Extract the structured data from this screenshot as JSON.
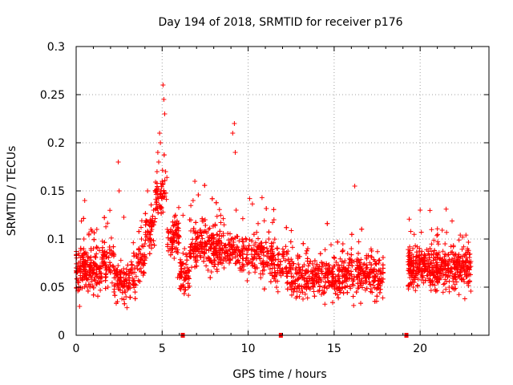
{
  "chart_data": {
    "type": "scatter",
    "title": "Day 194 of 2018, SRMTID for receiver p176",
    "xlabel": "GPS time / hours",
    "ylabel": "SRMTID / TECUs",
    "xlim": [
      0,
      24
    ],
    "ylim": [
      0,
      0.3
    ],
    "x_ticks": [
      0,
      5,
      10,
      15,
      20
    ],
    "x_tick_labels": [
      "0",
      "5",
      "10",
      "15",
      "20"
    ],
    "y_ticks": [
      0,
      0.05,
      0.1,
      0.15,
      0.2,
      0.25,
      0.3
    ],
    "y_tick_labels": [
      "0",
      "0.05",
      "0.1",
      "0.15",
      "0.2",
      "0.25",
      "0.3"
    ],
    "grid": true,
    "marker": "+",
    "color": "#ff0000",
    "gap_markers_x": [
      6.2,
      11.9,
      19.2
    ],
    "sampled_points": {
      "x": [
        0.0,
        0.1,
        0.15,
        0.2,
        0.25,
        0.35,
        0.45,
        0.5,
        0.55,
        0.65,
        0.75,
        0.85,
        1.0,
        1.2,
        1.35,
        1.5,
        1.7,
        1.85,
        2.0,
        2.2,
        2.3,
        2.4,
        2.45,
        2.5,
        2.6,
        2.75,
        2.9,
        3.0,
        3.2,
        3.4,
        3.6,
        3.8,
        4.0,
        4.15,
        4.3,
        4.4,
        4.5,
        4.6,
        4.7,
        4.75,
        4.8,
        4.85,
        4.9,
        4.95,
        5.0,
        5.05,
        5.1,
        5.15,
        5.2,
        5.3,
        5.5,
        5.7,
        5.9,
        6.1,
        6.3,
        6.6,
        6.8,
        6.9,
        7.0,
        7.2,
        7.5,
        7.7,
        8.0,
        8.3,
        8.6,
        8.9,
        9.1,
        9.2,
        9.25,
        9.3,
        9.6,
        9.9,
        10.2,
        10.5,
        10.8,
        11.2,
        11.5,
        11.7,
        12.0,
        12.3,
        12.6,
        12.9,
        13.2,
        13.5,
        13.8,
        14.1,
        14.4,
        14.7,
        15.0,
        15.3,
        15.6,
        15.9,
        16.0,
        16.2,
        16.5,
        16.8,
        17.1,
        17.4,
        17.6,
        17.8,
        19.4,
        19.6,
        19.8,
        20.0,
        20.3,
        20.6,
        20.9,
        21.2,
        21.5,
        21.8,
        22.0,
        22.3,
        22.6,
        22.8
      ],
      "y": [
        0.07,
        0.055,
        0.085,
        0.03,
        0.06,
        0.075,
        0.1,
        0.14,
        0.065,
        0.05,
        0.08,
        0.06,
        0.09,
        0.11,
        0.07,
        0.075,
        0.06,
        0.05,
        0.065,
        0.045,
        0.06,
        0.035,
        0.18,
        0.15,
        0.055,
        0.06,
        0.04,
        0.05,
        0.065,
        0.07,
        0.075,
        0.1,
        0.095,
        0.15,
        0.12,
        0.11,
        0.13,
        0.15,
        0.17,
        0.19,
        0.18,
        0.21,
        0.2,
        0.15,
        0.16,
        0.26,
        0.245,
        0.23,
        0.17,
        0.11,
        0.1,
        0.08,
        0.06,
        0.05,
        0.09,
        0.12,
        0.14,
        0.16,
        0.1,
        0.085,
        0.12,
        0.11,
        0.1,
        0.09,
        0.07,
        0.075,
        0.21,
        0.22,
        0.19,
        0.13,
        0.07,
        0.08,
        0.075,
        0.085,
        0.09,
        0.1,
        0.12,
        0.09,
        0.065,
        0.055,
        0.07,
        0.08,
        0.06,
        0.05,
        0.07,
        0.055,
        0.06,
        0.065,
        0.05,
        0.07,
        0.06,
        0.075,
        0.09,
        0.155,
        0.07,
        0.06,
        0.065,
        0.06,
        0.075,
        0.055,
        0.06,
        0.05,
        0.07,
        0.13,
        0.08,
        0.065,
        0.07,
        0.06,
        0.075,
        0.07,
        0.08,
        0.065,
        0.075,
        0.07
      ]
    }
  }
}
